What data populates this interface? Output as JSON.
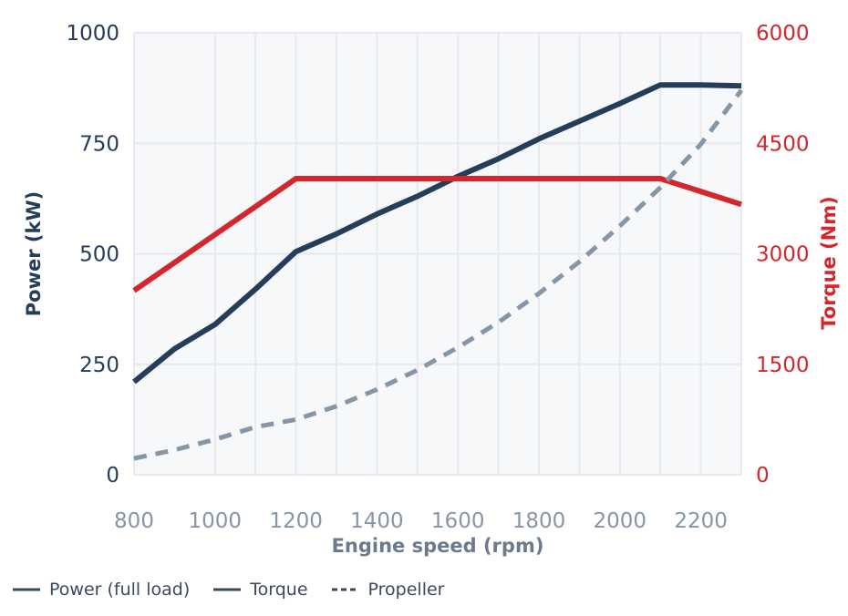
{
  "chart_data": {
    "type": "line",
    "xlabel": "Engine speed (rpm)",
    "ylabel_left": "Power (kW)",
    "ylabel_right": "Torque (Nm)",
    "xlim": [
      800,
      2300
    ],
    "ylim_left": [
      0,
      1000
    ],
    "ylim_right": [
      0,
      6000
    ],
    "x_ticks": [
      800,
      1000,
      1200,
      1400,
      1600,
      1800,
      2000,
      2200
    ],
    "y_ticks_left": [
      0,
      250,
      500,
      750,
      1000
    ],
    "y_ticks_right": [
      0,
      1500,
      3000,
      4500,
      6000
    ],
    "grid": true,
    "legend_position": "bottom-left",
    "series": [
      {
        "name": "Power (full load)",
        "axis": "left",
        "style": "solid",
        "color": "#253d5b",
        "x": [
          800,
          900,
          1000,
          1100,
          1200,
          1300,
          1400,
          1500,
          1600,
          1700,
          1800,
          1900,
          2000,
          2100,
          2200,
          2300
        ],
        "y": [
          210,
          285,
          340,
          420,
          505,
          545,
          590,
          630,
          675,
          715,
          760,
          800,
          840,
          882,
          882,
          880
        ]
      },
      {
        "name": "Torque",
        "axis": "right",
        "style": "solid",
        "color": "#d3272d",
        "x": [
          800,
          1200,
          2100,
          2300
        ],
        "y": [
          2500,
          4020,
          4020,
          3670
        ]
      },
      {
        "name": "Propeller",
        "axis": "left",
        "style": "dashed",
        "color": "#8596a8",
        "x": [
          800,
          900,
          1000,
          1100,
          1200,
          1300,
          1400,
          1500,
          1600,
          1700,
          1800,
          1900,
          2000,
          2100,
          2200,
          2300
        ],
        "y": [
          37,
          56,
          80,
          108,
          125,
          155,
          193,
          237,
          288,
          345,
          410,
          482,
          563,
          650,
          748,
          870
        ]
      }
    ],
    "legend": [
      {
        "label": "Power (full load)",
        "color": "#3a4a5c",
        "style": "solid"
      },
      {
        "label": "Torque",
        "color": "#3a4a5c",
        "style": "solid"
      },
      {
        "label": "Propeller",
        "color": "#3a4a5c",
        "style": "dashed"
      }
    ],
    "colors": {
      "left_axis": "#253d5b",
      "right_axis": "#d3272d",
      "x_ticks": "#8596a8",
      "x_title": "#6b7b8d",
      "grid": "#e6e9ee",
      "plot_bg": "#f7f8fa"
    }
  }
}
